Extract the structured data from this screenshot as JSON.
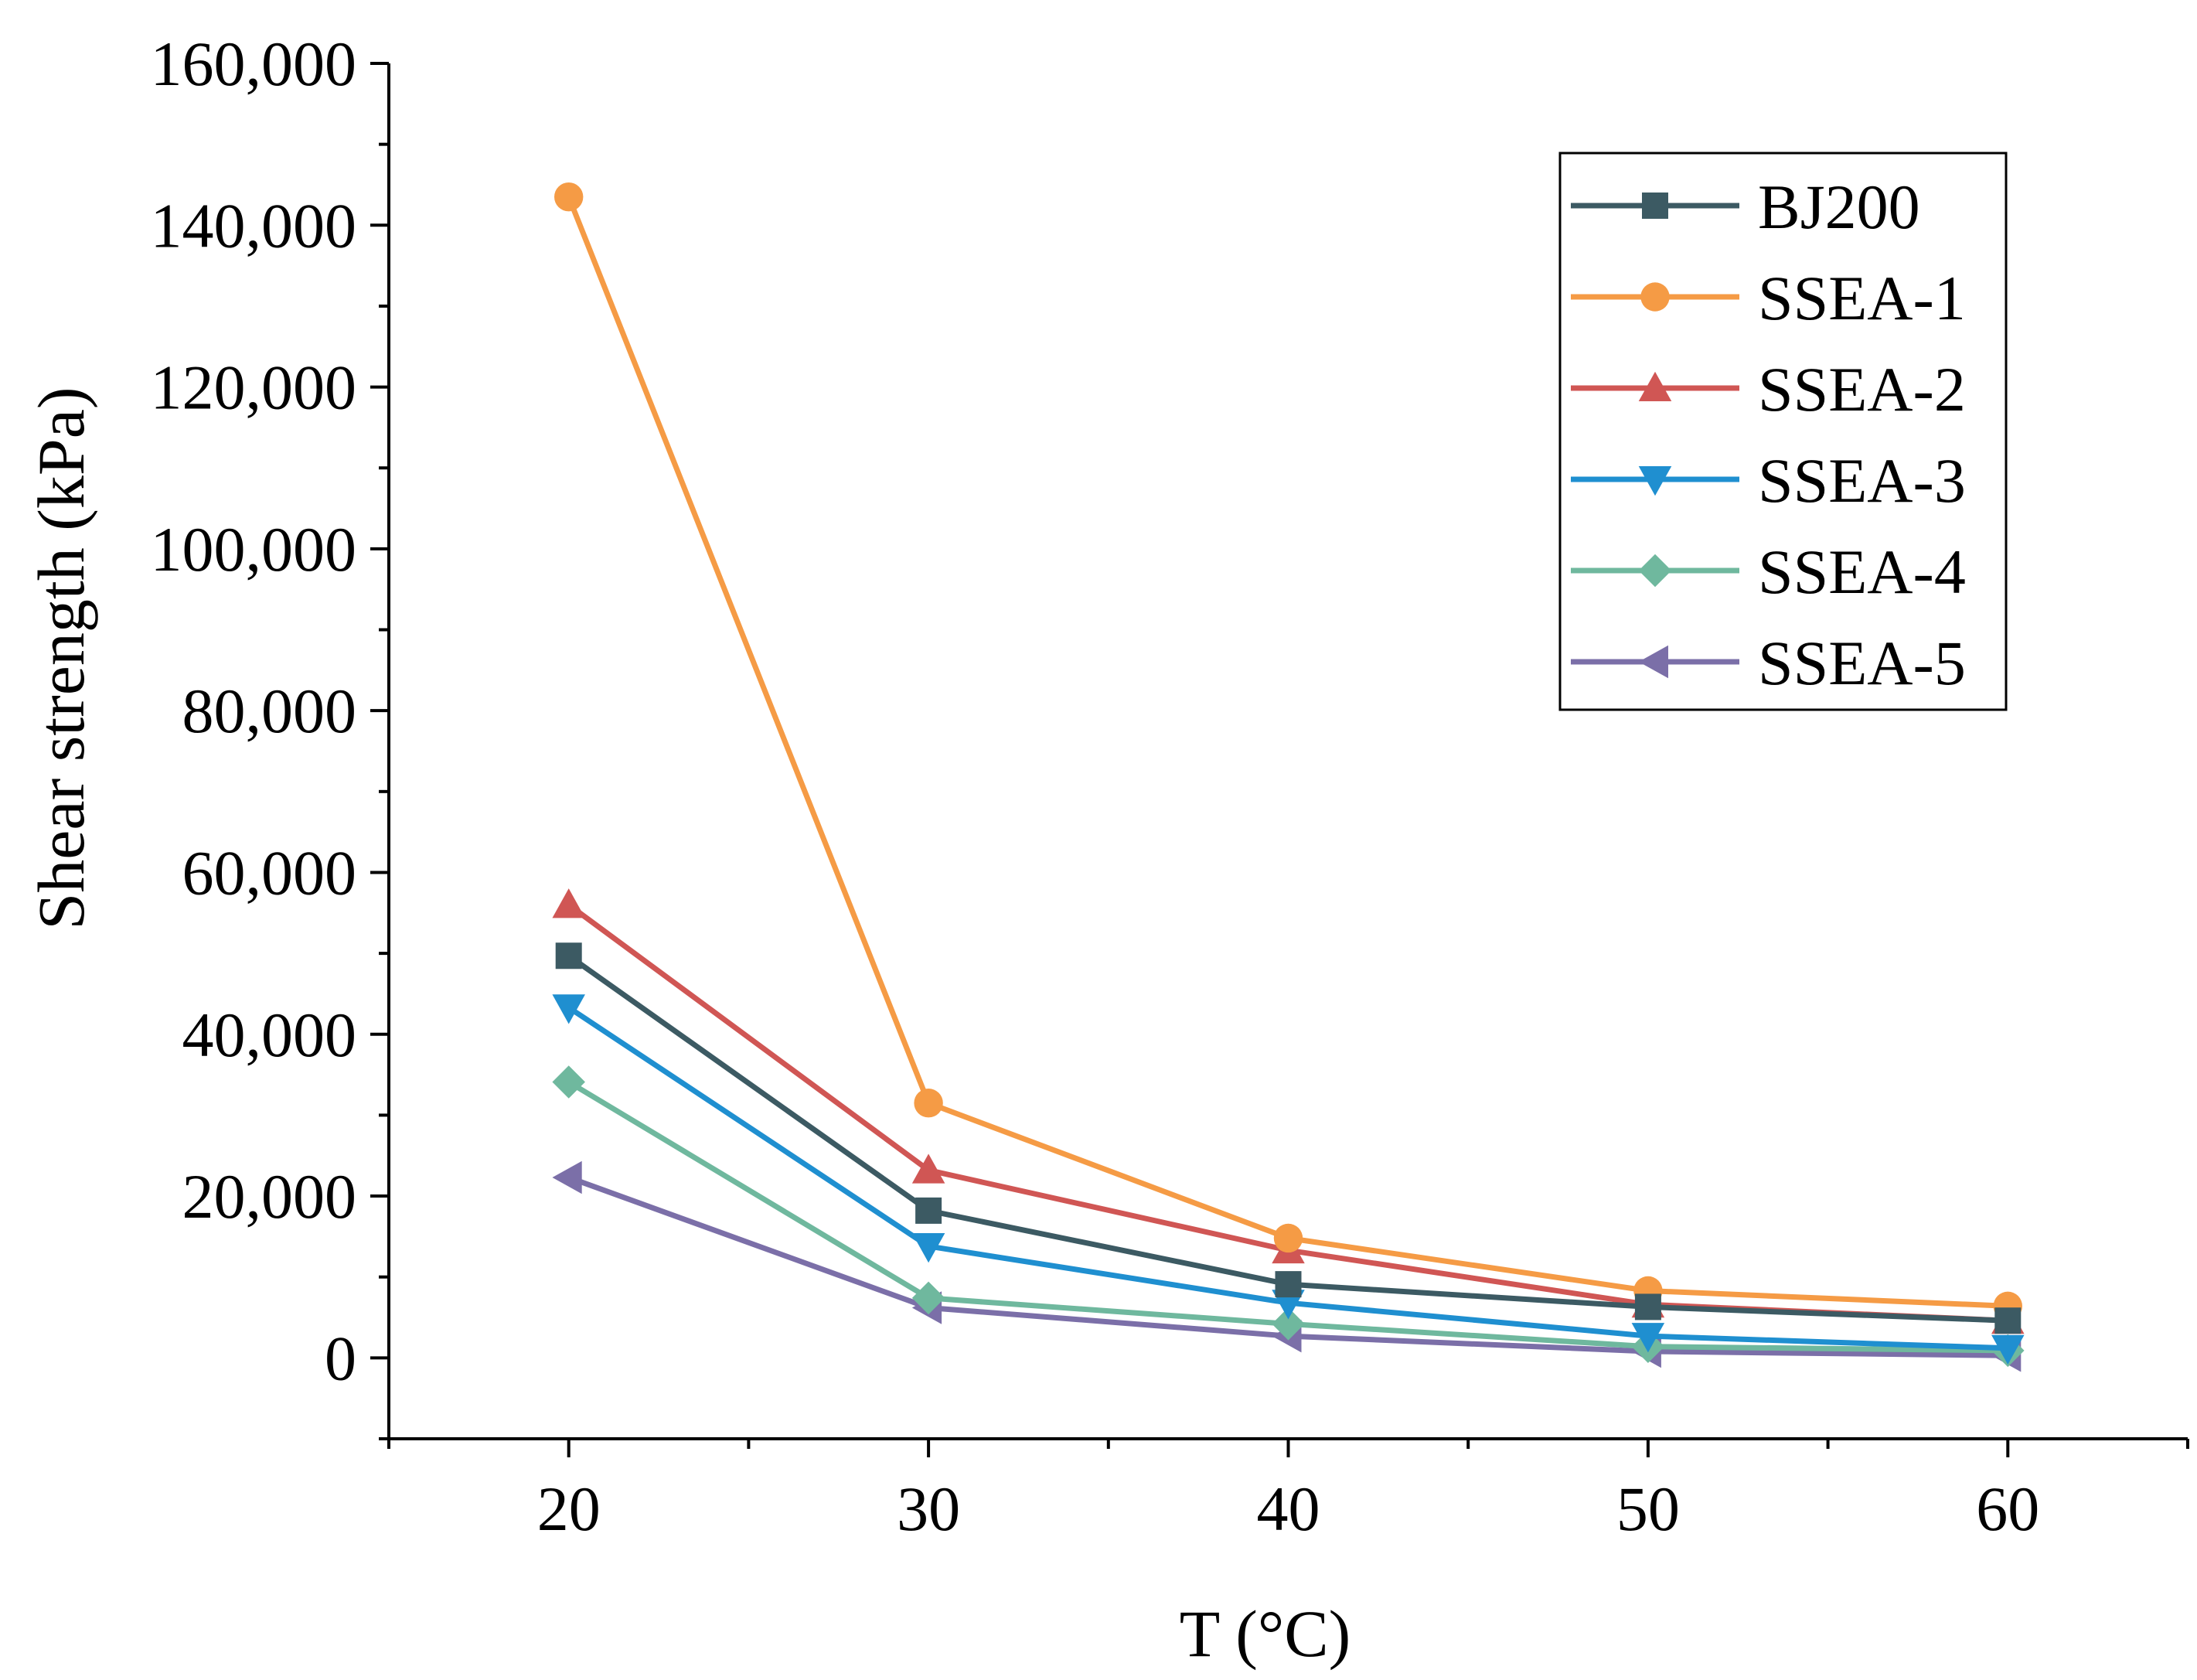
{
  "chart_data": {
    "type": "line",
    "title": "",
    "xlabel": "T (°C)",
    "ylabel": "Shear strength (kPa)",
    "xlim": [
      15,
      65
    ],
    "ylim": [
      -10000,
      160000
    ],
    "x": [
      20,
      30,
      40,
      50,
      60
    ],
    "x_ticks": [
      20,
      30,
      40,
      50,
      60
    ],
    "x_tick_labels": [
      "20",
      "30",
      "40",
      "50",
      "60"
    ],
    "y_ticks": [
      0,
      20000,
      40000,
      60000,
      80000,
      100000,
      120000,
      140000,
      160000
    ],
    "y_tick_labels": [
      "0",
      "20,000",
      "40,000",
      "60,000",
      "80,000",
      "100,000",
      "120,000",
      "140,000",
      "160,000"
    ],
    "grid": false,
    "legend_position": "top-right",
    "series": [
      {
        "name": "BJ200",
        "color": "#3c5a63",
        "marker": "square",
        "values": [
          49700,
          18200,
          9100,
          6300,
          4600
        ]
      },
      {
        "name": "SSEA-1",
        "color": "#f59b45",
        "marker": "circle",
        "values": [
          143500,
          31500,
          14800,
          8300,
          6400
        ]
      },
      {
        "name": "SSEA-2",
        "color": "#d05654",
        "marker": "triangle-up",
        "values": [
          56000,
          23200,
          13300,
          6600,
          4600
        ]
      },
      {
        "name": "SSEA-3",
        "color": "#1f8fd0",
        "marker": "triangle-down",
        "values": [
          43300,
          13800,
          6800,
          2700,
          1200
        ]
      },
      {
        "name": "SSEA-4",
        "color": "#6fb89e",
        "marker": "diamond",
        "values": [
          34100,
          7400,
          4200,
          1400,
          900
        ]
      },
      {
        "name": "SSEA-5",
        "color": "#7b6fa8",
        "marker": "triangle-left",
        "values": [
          22300,
          6200,
          2700,
          800,
          300
        ]
      }
    ]
  }
}
